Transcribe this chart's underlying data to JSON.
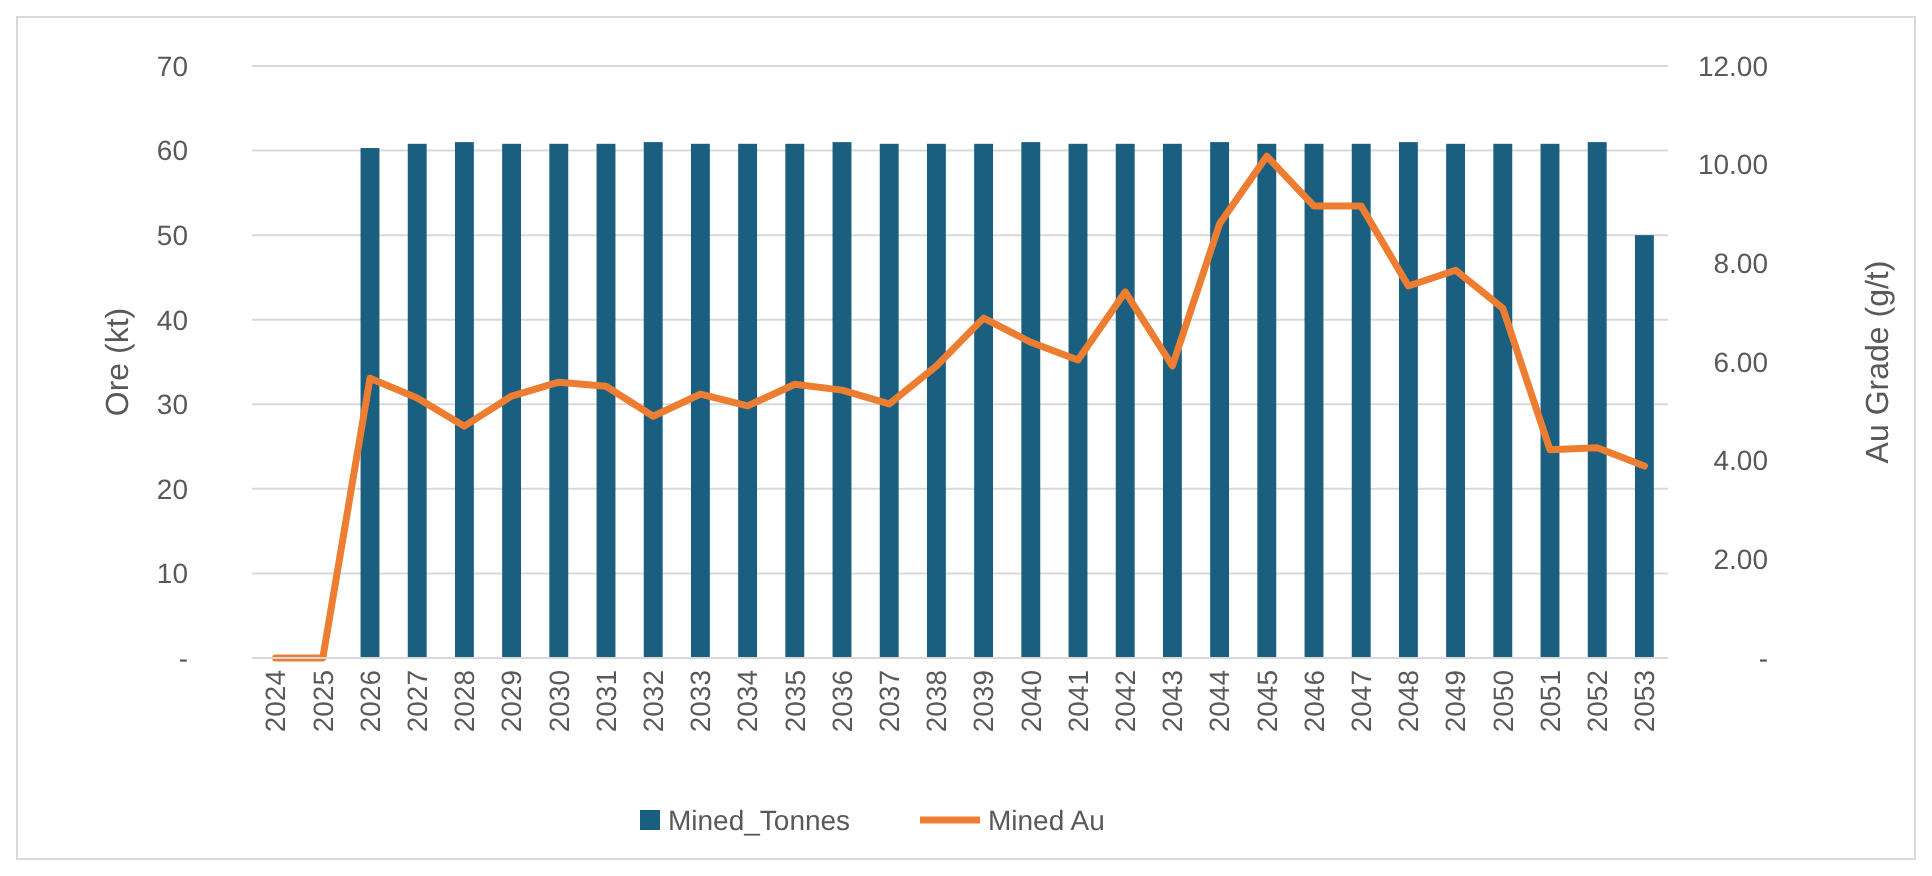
{
  "chart_data": {
    "type": "bar",
    "categories": [
      "2024",
      "2025",
      "2026",
      "2027",
      "2028",
      "2029",
      "2030",
      "2031",
      "2032",
      "2033",
      "2034",
      "2035",
      "2036",
      "2037",
      "2038",
      "2039",
      "2040",
      "2041",
      "2042",
      "2043",
      "2044",
      "2045",
      "2046",
      "2047",
      "2048",
      "2049",
      "2050",
      "2051",
      "2052",
      "2053"
    ],
    "series": [
      {
        "name": "Mined_Tonnes",
        "color": "#1a5e80",
        "values": [
          0,
          0,
          60.3,
          60.8,
          61,
          60.8,
          60.8,
          60.8,
          61,
          60.8,
          60.8,
          60.8,
          61,
          60.8,
          60.8,
          60.8,
          61,
          60.8,
          60.8,
          60.8,
          61,
          60.8,
          60.8,
          60.8,
          61,
          60.8,
          60.8,
          60.8,
          61,
          50
        ]
      },
      {
        "name": "Mined Au",
        "type": "line",
        "axis": "y2",
        "color": "#ed7d31",
        "values": [
          0,
          0,
          5.67,
          5.27,
          4.7,
          5.31,
          5.59,
          5.51,
          4.9,
          5.35,
          5.11,
          5.55,
          5.43,
          5.15,
          5.92,
          6.89,
          6.4,
          6.04,
          7.42,
          5.92,
          8.8,
          10.17,
          9.16,
          9.16,
          7.54,
          7.86,
          7.09,
          4.22,
          4.26,
          3.89
        ]
      }
    ],
    "ylabel": "Ore (kt)",
    "y2label": "Au Grade (g/t)",
    "ylim": [
      0,
      70
    ],
    "yticks": [
      {
        "value": 0,
        "label": "-"
      },
      10,
      20,
      30,
      40,
      50,
      60,
      70
    ],
    "y2lim": [
      0,
      12
    ],
    "y2ticks": [
      {
        "value": 0,
        "label": "-"
      },
      {
        "value": 2,
        "label": "2.00"
      },
      {
        "value": 4,
        "label": "4.00"
      },
      {
        "value": 6,
        "label": "6.00"
      },
      {
        "value": 8,
        "label": "8.00"
      },
      {
        "value": 10,
        "label": "10.00"
      },
      {
        "value": 12,
        "label": "12.00"
      }
    ],
    "grid": "y",
    "legend": "bottom",
    "marker": "none",
    "line_style": "solid"
  }
}
